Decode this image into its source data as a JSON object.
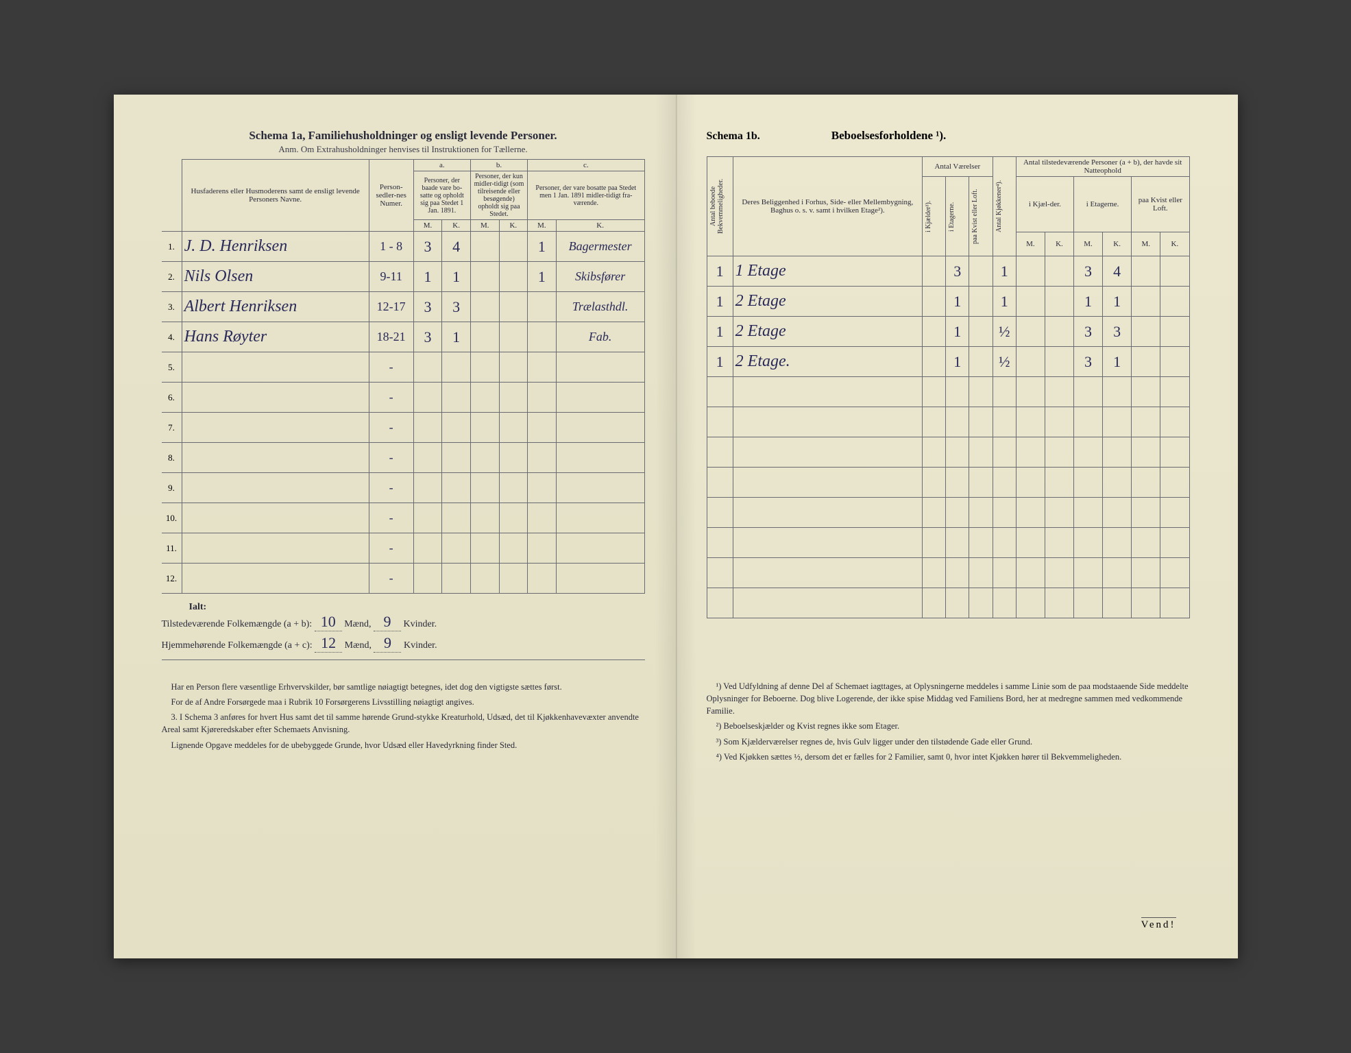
{
  "colors": {
    "paper": "#e8e4cc",
    "paper_right": "#ece8d0",
    "ink_print": "#2a2a3a",
    "ink_hand": "#2a2a5a",
    "rule": "#6a6a72",
    "background": "#3a3a3a"
  },
  "typography": {
    "print_family": "Georgia, Times New Roman, serif",
    "hand_family": "Brush Script MT, cursive",
    "title_size_pt": 17,
    "body_size_pt": 12,
    "hand_size_pt": 22
  },
  "left": {
    "schema_label": "Schema 1a,",
    "title": "Familiehusholdninger og ensligt levende Personer.",
    "subtitle": "Anm. Om Extrahusholdninger henvises til Instruktionen for Tællerne.",
    "columns": {
      "names_header": "Husfaderens eller Husmoderens samt de ensligt levende Personers Navne.",
      "person_num": "Person-sedler-nes Numer.",
      "group_a_label": "a.",
      "group_a": "Personer, der baade vare bo-satte og opholdt sig paa Stedet 1 Jan. 1891.",
      "group_b_label": "b.",
      "group_b": "Personer, der kun midler-tidigt (som tilreisende eller besøgende) opholdt sig paa Stedet.",
      "group_c_label": "c.",
      "group_c": "Personer, der vare bosatte paa Stedet men 1 Jan. 1891 midler-tidigt fra-værende.",
      "sub_m": "M.",
      "sub_k": "K."
    },
    "rows": [
      {
        "n": "1.",
        "name": "J. D. Henriksen",
        "num": "1 - 8",
        "a_m": "3",
        "a_k": "4",
        "b_m": "",
        "b_k": "",
        "c_m": "1",
        "c_k": "Bagermester"
      },
      {
        "n": "2.",
        "name": "Nils Olsen",
        "num": "9-11",
        "a_m": "1",
        "a_k": "1",
        "b_m": "",
        "b_k": "",
        "c_m": "1",
        "c_k": "Skibsfører"
      },
      {
        "n": "3.",
        "name": "Albert Henriksen",
        "num": "12-17",
        "a_m": "3",
        "a_k": "3",
        "b_m": "",
        "b_k": "",
        "c_m": "",
        "c_k": "Trælasthdl."
      },
      {
        "n": "4.",
        "name": "Hans Røyter",
        "num": "18-21",
        "a_m": "3",
        "a_k": "1",
        "b_m": "",
        "b_k": "",
        "c_m": "",
        "c_k": "Fab."
      },
      {
        "n": "5.",
        "name": "",
        "num": "-",
        "a_m": "",
        "a_k": "",
        "b_m": "",
        "b_k": "",
        "c_m": "",
        "c_k": ""
      },
      {
        "n": "6.",
        "name": "",
        "num": "-",
        "a_m": "",
        "a_k": "",
        "b_m": "",
        "b_k": "",
        "c_m": "",
        "c_k": ""
      },
      {
        "n": "7.",
        "name": "",
        "num": "-",
        "a_m": "",
        "a_k": "",
        "b_m": "",
        "b_k": "",
        "c_m": "",
        "c_k": ""
      },
      {
        "n": "8.",
        "name": "",
        "num": "-",
        "a_m": "",
        "a_k": "",
        "b_m": "",
        "b_k": "",
        "c_m": "",
        "c_k": ""
      },
      {
        "n": "9.",
        "name": "",
        "num": "-",
        "a_m": "",
        "a_k": "",
        "b_m": "",
        "b_k": "",
        "c_m": "",
        "c_k": ""
      },
      {
        "n": "10.",
        "name": "",
        "num": "-",
        "a_m": "",
        "a_k": "",
        "b_m": "",
        "b_k": "",
        "c_m": "",
        "c_k": ""
      },
      {
        "n": "11.",
        "name": "",
        "num": "-",
        "a_m": "",
        "a_k": "",
        "b_m": "",
        "b_k": "",
        "c_m": "",
        "c_k": ""
      },
      {
        "n": "12.",
        "name": "",
        "num": "-",
        "a_m": "",
        "a_k": "",
        "b_m": "",
        "b_k": "",
        "c_m": "",
        "c_k": ""
      }
    ],
    "totals": {
      "ialt": "Ialt:",
      "line1_label": "Tilstedeværende Folkemængde (a + b):",
      "line1_m": "10",
      "line1_m_unit": "Mænd,",
      "line1_k": "9",
      "line1_k_unit": "Kvinder.",
      "line2_label": "Hjemmehørende Folkemængde (a + c):",
      "line2_m": "12",
      "line2_m_unit": "Mænd,",
      "line2_k": "9",
      "line2_k_unit": "Kvinder."
    },
    "footnotes": [
      "Har en Person flere væsentlige Erhvervskilder, bør samtlige nøiagtigt betegnes, idet dog den vigtigste sættes først.",
      "For de af Andre Forsørgede maa i Rubrik 10 Forsørgerens Livsstilling nøiagtigt angives.",
      "3. I Schema 3 anføres for hvert Hus samt det til samme hørende Grund-stykke Kreaturhold, Udsæd, det til Kjøkkenhavevæxter anvendte Areal samt Kjøreredskaber efter Schemaets Anvisning.",
      "Lignende Opgave meddeles for de ubebyggede Grunde, hvor Udsæd eller Havedyrkning finder Sted."
    ]
  },
  "right": {
    "schema_label": "Schema 1b.",
    "title": "Beboelsesforholdene ¹).",
    "columns": {
      "antal_bekv": "Antal beboede Bekvemmeligheder.",
      "beliggenhed": "Deres Beliggenhed i Forhus, Side- eller Mellembygning, Baghus o. s. v. samt i hvilken Etage²).",
      "antal_vaer": "Antal Værelser",
      "i_kjaelder": "i Kjælder³).",
      "i_etagerne": "i Etagerne.",
      "paa_kvist": "paa Kvist eller Loft.",
      "antal_kjok": "Antal Kjøkkener⁴).",
      "tilstede_header": "Antal tilstedeværende Personer (a + b), der havde sit Natteophold",
      "nat_kjaelder": "i Kjæl-der.",
      "nat_etagerne": "i Etagerne.",
      "nat_kvist": "paa Kvist eller Loft.",
      "sub_m": "M.",
      "sub_k": "K."
    },
    "rows": [
      {
        "bekv": "1",
        "belig": "1 Etage",
        "kj": "",
        "et": "3",
        "kv": "",
        "kjok": "1",
        "nk_m": "",
        "nk_k": "",
        "ne_m": "3",
        "ne_k": "4",
        "nkv_m": "",
        "nkv_k": ""
      },
      {
        "bekv": "1",
        "belig": "2 Etage",
        "kj": "",
        "et": "1",
        "kv": "",
        "kjok": "1",
        "nk_m": "",
        "nk_k": "",
        "ne_m": "1",
        "ne_k": "1",
        "nkv_m": "",
        "nkv_k": ""
      },
      {
        "bekv": "1",
        "belig": "2 Etage",
        "kj": "",
        "et": "1",
        "kv": "",
        "kjok": "½",
        "nk_m": "",
        "nk_k": "",
        "ne_m": "3",
        "ne_k": "3",
        "nkv_m": "",
        "nkv_k": ""
      },
      {
        "bekv": "1",
        "belig": "2 Etage.",
        "kj": "",
        "et": "1",
        "kv": "",
        "kjok": "½",
        "nk_m": "",
        "nk_k": "",
        "ne_m": "3",
        "ne_k": "1",
        "nkv_m": "",
        "nkv_k": ""
      },
      {
        "bekv": "",
        "belig": "",
        "kj": "",
        "et": "",
        "kv": "",
        "kjok": "",
        "nk_m": "",
        "nk_k": "",
        "ne_m": "",
        "ne_k": "",
        "nkv_m": "",
        "nkv_k": ""
      },
      {
        "bekv": "",
        "belig": "",
        "kj": "",
        "et": "",
        "kv": "",
        "kjok": "",
        "nk_m": "",
        "nk_k": "",
        "ne_m": "",
        "ne_k": "",
        "nkv_m": "",
        "nkv_k": ""
      },
      {
        "bekv": "",
        "belig": "",
        "kj": "",
        "et": "",
        "kv": "",
        "kjok": "",
        "nk_m": "",
        "nk_k": "",
        "ne_m": "",
        "ne_k": "",
        "nkv_m": "",
        "nkv_k": ""
      },
      {
        "bekv": "",
        "belig": "",
        "kj": "",
        "et": "",
        "kv": "",
        "kjok": "",
        "nk_m": "",
        "nk_k": "",
        "ne_m": "",
        "ne_k": "",
        "nkv_m": "",
        "nkv_k": ""
      },
      {
        "bekv": "",
        "belig": "",
        "kj": "",
        "et": "",
        "kv": "",
        "kjok": "",
        "nk_m": "",
        "nk_k": "",
        "ne_m": "",
        "ne_k": "",
        "nkv_m": "",
        "nkv_k": ""
      },
      {
        "bekv": "",
        "belig": "",
        "kj": "",
        "et": "",
        "kv": "",
        "kjok": "",
        "nk_m": "",
        "nk_k": "",
        "ne_m": "",
        "ne_k": "",
        "nkv_m": "",
        "nkv_k": ""
      },
      {
        "bekv": "",
        "belig": "",
        "kj": "",
        "et": "",
        "kv": "",
        "kjok": "",
        "nk_m": "",
        "nk_k": "",
        "ne_m": "",
        "ne_k": "",
        "nkv_m": "",
        "nkv_k": ""
      },
      {
        "bekv": "",
        "belig": "",
        "kj": "",
        "et": "",
        "kv": "",
        "kjok": "",
        "nk_m": "",
        "nk_k": "",
        "ne_m": "",
        "ne_k": "",
        "nkv_m": "",
        "nkv_k": ""
      }
    ],
    "footnotes": [
      "¹) Ved Udfyldning af denne Del af Schemaet iagttages, at Oplysningerne meddeles i samme Linie som de paa modstaaende Side meddelte Oplysninger for Beboerne. Dog blive Logerende, der ikke spise Middag ved Familiens Bord, her at medregne sammen med vedkommende Familie.",
      "²) Beboelseskjælder og Kvist regnes ikke som Etager.",
      "³) Som Kjælderværelser regnes de, hvis Gulv ligger under den tilstødende Gade eller Grund.",
      "⁴) Ved Kjøkken sættes ½, dersom det er fælles for 2 Familier, samt 0, hvor intet Kjøkken hører til Bekvemmeligheden."
    ],
    "vend": "Vend!"
  }
}
